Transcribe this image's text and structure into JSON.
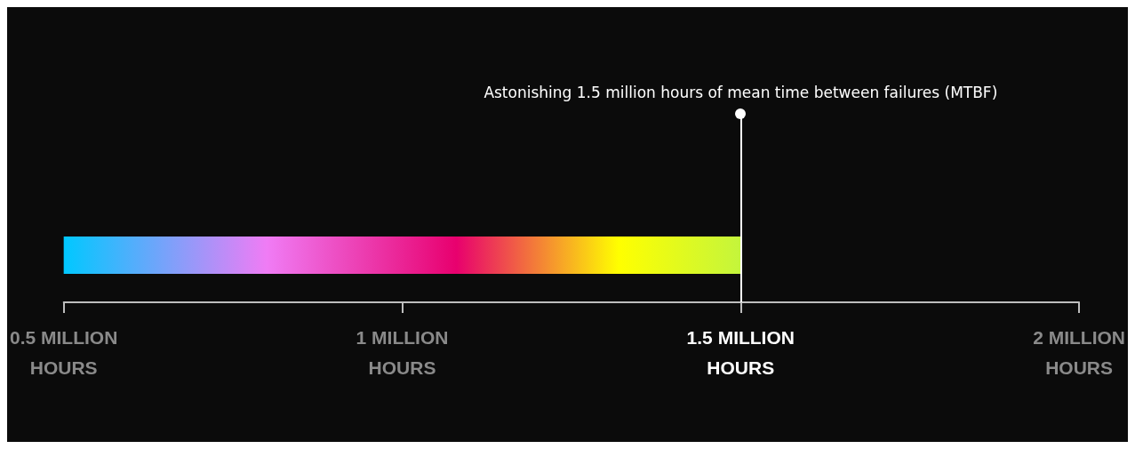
{
  "chart_data": {
    "type": "bar",
    "orientation": "horizontal",
    "categories": [
      null
    ],
    "values": [
      1.5
    ],
    "xlim": [
      0.5,
      2
    ],
    "xticks": [
      {
        "value": 0.5,
        "label": "0.5 MILLION\nHOURS"
      },
      {
        "value": 1,
        "label": "1 MILLION\nHOURS"
      },
      {
        "value": 1.5,
        "label": "1.5 MILLION\nHOURS"
      },
      {
        "value": 2,
        "label": "2 MILLION\nHOURS"
      }
    ],
    "ref_lines": [
      {
        "axis": "x",
        "value": 1.5,
        "label": "Astonishing 1.5 million hours of mean time between failures (MTBF)",
        "color": "#ffffff"
      }
    ],
    "tick_labels": "x",
    "grid": false
  }
}
